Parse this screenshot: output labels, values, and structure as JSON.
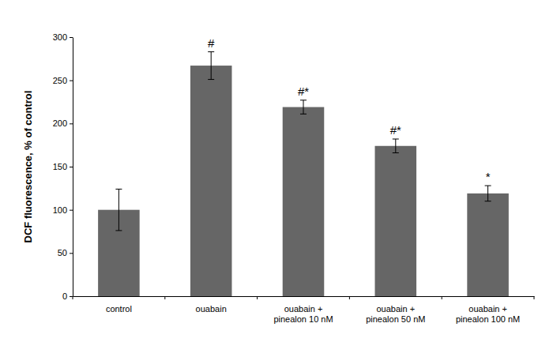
{
  "chart_data": {
    "type": "bar",
    "y_label": "DCF fluorescence, % of control",
    "categories": [
      "control",
      "ouabain",
      "ouabain +\npinealon 10 nM",
      "ouabain +\npinealon 50 nM",
      "ouabain +\npinealon 100 nM"
    ],
    "values": [
      100,
      267,
      219,
      174,
      119
    ],
    "errors": [
      24,
      16,
      8,
      8,
      9
    ],
    "annotations": [
      null,
      "#",
      "#*",
      "#*",
      "*"
    ],
    "color": "#666666",
    "ylim": [
      0,
      300
    ],
    "yticks": [
      0,
      50,
      100,
      150,
      200,
      250,
      300
    ],
    "grid": false
  }
}
